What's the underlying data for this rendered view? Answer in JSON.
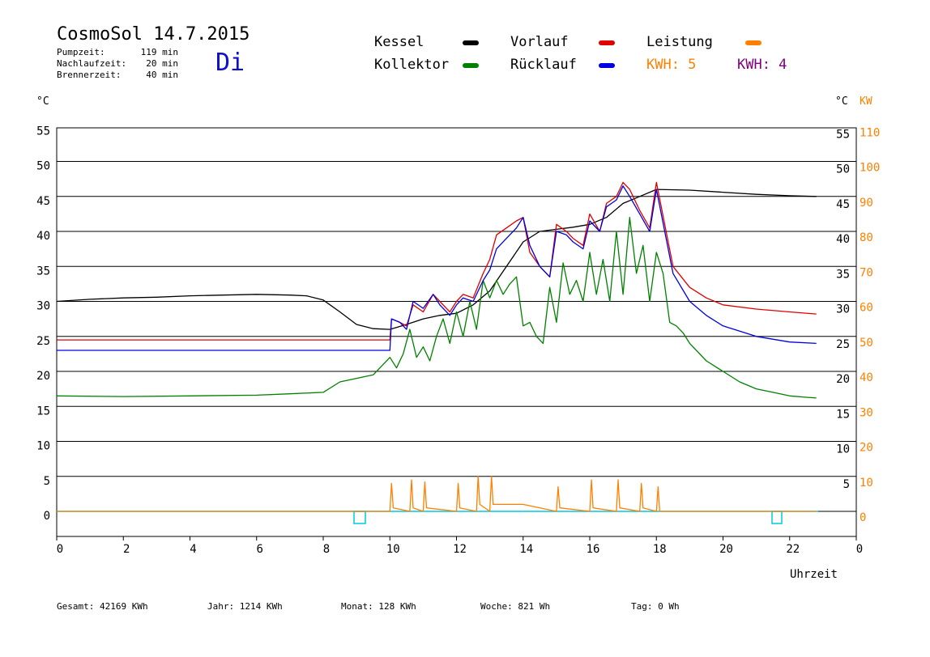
{
  "header": {
    "title": "CosmoSol 14.7.2015",
    "day": "Di",
    "info": [
      {
        "label": "Pumpzeit:",
        "value": "119 min"
      },
      {
        "label": "Nachlaufzeit:",
        "value": "20 min"
      },
      {
        "label": "Brennerzeit:",
        "value": "40 min"
      }
    ]
  },
  "legend": {
    "kessel": "Kessel",
    "kollektor": "Kollektor",
    "vorlauf": "Vorlauf",
    "ruecklauf": "Rücklauf",
    "leistung": "Leistung",
    "kwh1": "KWH: 5",
    "kwh2": "KWH: 4",
    "colors": {
      "kessel": "#000000",
      "kollektor": "#008000",
      "vorlauf": "#e00000",
      "ruecklauf": "#0000e0",
      "leistung": "#ff8000",
      "kwh2": "#800080",
      "pump": "#00c8e0"
    }
  },
  "footer": {
    "gesamt": "Gesamt:  42169 KWh",
    "jahr": "Jahr:   1214 KWh",
    "monat": "Monat:    128 KWh",
    "woche": "Woche:    821 Wh",
    "tag": "Tag:      0 Wh"
  },
  "chart_data": {
    "type": "line",
    "title": "CosmoSol 14.7.2015",
    "xlabel": "Uhrzeit",
    "ylabel_left": "°C",
    "ylabel_right_temp": "°C",
    "ylabel_right_power": "KW",
    "xlim": [
      0,
      23
    ],
    "ylim": [
      -2.5,
      55
    ],
    "x_ticks": [
      "0",
      "2",
      "4",
      "6",
      "8",
      "10",
      "12",
      "14",
      "16",
      "18",
      "20",
      "22",
      "0"
    ],
    "y_ticks_left": [
      "55",
      "50",
      "45",
      "40",
      "35",
      "30",
      "25",
      "20",
      "15",
      "10",
      "5",
      "0"
    ],
    "y_ticks_right_temp": [
      "55",
      "50",
      "45",
      "40",
      "35",
      "30",
      "25",
      "20",
      "15",
      "10",
      "5"
    ],
    "y_ticks_right_kw": [
      "110",
      "100",
      "90",
      "80",
      "70",
      "60",
      "50",
      "40",
      "30",
      "20",
      "10",
      "0"
    ],
    "grid": true,
    "series": [
      {
        "name": "Kessel",
        "x": [
          0,
          1,
          2,
          3,
          4,
          5,
          6,
          7,
          7.5,
          8,
          8.5,
          9,
          9.5,
          10,
          10.5,
          11,
          11.5,
          12,
          12.5,
          13,
          13.5,
          14,
          14.5,
          15,
          15.5,
          16,
          16.5,
          17,
          17.5,
          18,
          19,
          20,
          21,
          22,
          22.8
        ],
        "y": [
          30,
          30.3,
          30.5,
          30.6,
          30.8,
          30.9,
          31,
          30.9,
          30.8,
          30.2,
          28.5,
          26.7,
          26.1,
          26,
          26.7,
          27.5,
          28,
          28.3,
          29.5,
          31.5,
          35,
          38.5,
          40,
          40.3,
          40.6,
          41,
          42,
          44,
          45,
          46,
          45.9,
          45.6,
          45.3,
          45.1,
          45
        ]
      },
      {
        "name": "Kollektor",
        "x": [
          0,
          2,
          4,
          6,
          7,
          8,
          8.5,
          9,
          9.5,
          10,
          10.2,
          10.4,
          10.6,
          10.8,
          11,
          11.2,
          11.4,
          11.6,
          11.8,
          12,
          12.2,
          12.4,
          12.6,
          12.8,
          13,
          13.2,
          13.4,
          13.6,
          13.8,
          14,
          14.2,
          14.4,
          14.6,
          14.8,
          15,
          15.2,
          15.4,
          15.6,
          15.8,
          16,
          16.2,
          16.4,
          16.6,
          16.8,
          17,
          17.2,
          17.4,
          17.6,
          17.8,
          18,
          18.2,
          18.4,
          18.6,
          18.8,
          19,
          19.5,
          20,
          20.5,
          21,
          21.5,
          22,
          22.5,
          22.8
        ],
        "y": [
          16.5,
          16.4,
          16.5,
          16.6,
          16.8,
          17,
          18.5,
          19,
          19.5,
          22,
          20.5,
          22.5,
          26,
          22,
          23.5,
          21.5,
          25,
          27.5,
          24,
          28.5,
          25,
          30,
          26,
          33,
          30.5,
          33,
          31,
          32.5,
          33.5,
          26.5,
          27,
          25,
          24,
          32,
          27,
          35.5,
          31,
          33,
          30,
          37,
          31,
          36,
          30,
          40,
          31,
          42,
          34,
          38,
          30,
          37,
          34,
          27,
          26.5,
          25.5,
          24,
          21.5,
          20,
          18.5,
          17.5,
          17,
          16.5,
          16.3,
          16.2
        ]
      },
      {
        "name": "Vorlauf",
        "x": [
          0,
          3,
          6,
          8,
          9,
          9.5,
          10,
          10.05,
          10.3,
          10.5,
          10.7,
          11,
          11.3,
          11.5,
          11.8,
          12,
          12.2,
          12.5,
          12.8,
          13,
          13.2,
          13.5,
          13.8,
          14,
          14.2,
          14.5,
          14.8,
          15,
          15.3,
          15.5,
          15.8,
          16,
          16.3,
          16.5,
          16.8,
          17,
          17.2,
          17.5,
          17.8,
          18,
          18.5,
          19,
          19.5,
          20,
          21,
          22,
          22.8
        ],
        "y": [
          24.5,
          24.5,
          24.5,
          24.5,
          24.5,
          24.5,
          24.5,
          27.5,
          27,
          26.5,
          29.5,
          28.5,
          31,
          30,
          28.5,
          30,
          31,
          30.5,
          34,
          36,
          39.5,
          40.5,
          41.5,
          42,
          37,
          35,
          33.5,
          41,
          40,
          39,
          38,
          42.5,
          40,
          44,
          45,
          47,
          46,
          43,
          40.5,
          47,
          35,
          32,
          30.5,
          29.5,
          28.9,
          28.5,
          28.2
        ]
      },
      {
        "name": "Rücklauf",
        "x": [
          0,
          3,
          6,
          8,
          9,
          9.5,
          10,
          10.05,
          10.3,
          10.5,
          10.7,
          11,
          11.3,
          11.5,
          11.8,
          12,
          12.2,
          12.5,
          12.8,
          13,
          13.2,
          13.5,
          13.8,
          14,
          14.2,
          14.5,
          14.8,
          15,
          15.3,
          15.5,
          15.8,
          16,
          16.3,
          16.5,
          16.8,
          17,
          17.2,
          17.5,
          17.8,
          18,
          18.5,
          19,
          19.5,
          20,
          21,
          22,
          22.8
        ],
        "y": [
          23,
          23,
          23,
          23,
          23,
          23,
          23,
          27.5,
          27,
          26,
          30,
          29,
          31,
          29.5,
          28,
          29.5,
          30.5,
          30,
          33,
          34.5,
          37.5,
          39,
          40.5,
          42,
          38,
          35,
          33.5,
          40,
          39.5,
          38.5,
          37.5,
          41.5,
          40,
          43.5,
          44.5,
          46.5,
          45,
          42.5,
          40,
          46,
          34,
          30,
          28,
          26.5,
          25,
          24.2,
          24
        ]
      },
      {
        "name": "Leistung",
        "x": [
          0,
          10,
          10.05,
          10.1,
          10.6,
          10.65,
          10.7,
          11,
          11.05,
          11.1,
          12,
          12.05,
          12.1,
          12.6,
          12.65,
          12.7,
          13,
          13.05,
          13.1,
          14,
          15,
          15.05,
          15.1,
          16,
          16.05,
          16.1,
          16.8,
          16.85,
          16.9,
          17.5,
          17.55,
          17.6,
          18,
          18.05,
          18.1,
          22.8
        ],
        "y": [
          0,
          0,
          4,
          0.5,
          0,
          4.5,
          0.5,
          0,
          4.2,
          0.5,
          0,
          4,
          0.5,
          0,
          5,
          1,
          0,
          5,
          1,
          1,
          0,
          3.5,
          0.5,
          0,
          4.5,
          0.5,
          0,
          4.5,
          0.5,
          0,
          4,
          0.5,
          0,
          3.5,
          0,
          0
        ]
      }
    ]
  }
}
